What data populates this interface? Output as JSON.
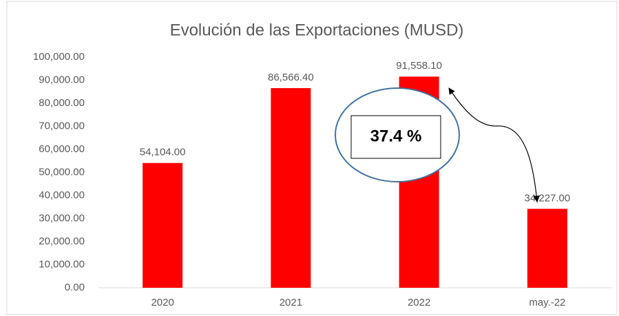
{
  "chart_data": {
    "type": "bar",
    "title": "Evolución de las Exportaciones (MUSD)",
    "categories": [
      "2020",
      "2021",
      "2022",
      "may.-22"
    ],
    "values": [
      54104.0,
      86566.4,
      91558.1,
      34227.0
    ],
    "value_labels": [
      "54,104.00",
      "86,566.40",
      "91,558.10",
      "34,227.00"
    ],
    "color": "#ff0000",
    "ylim": [
      0,
      100000
    ],
    "yticks": [
      {
        "value": 0,
        "label": "0.00"
      },
      {
        "value": 10000,
        "label": "10,000.00"
      },
      {
        "value": 20000,
        "label": "20,000.00"
      },
      {
        "value": 30000,
        "label": "30,000.00"
      },
      {
        "value": 40000,
        "label": "40,000.00"
      },
      {
        "value": 50000,
        "label": "50,000.00"
      },
      {
        "value": 60000,
        "label": "60,000.00"
      },
      {
        "value": 70000,
        "label": "70,000.00"
      },
      {
        "value": 80000,
        "label": "80,000.00"
      },
      {
        "value": 90000,
        "label": "90,000.00"
      },
      {
        "value": 100000,
        "label": "100,000.00"
      }
    ],
    "grid": false,
    "annotations": [
      "37.4 %"
    ]
  }
}
